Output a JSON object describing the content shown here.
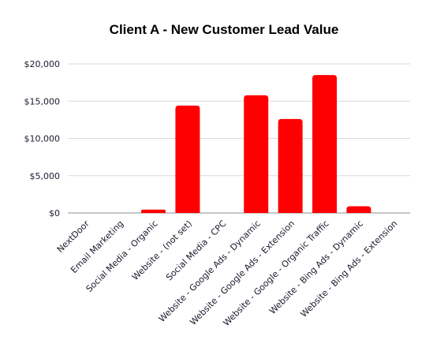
{
  "chart_data": {
    "type": "bar",
    "title": "Client A - New Customer Lead Value",
    "xlabel": "",
    "ylabel": "",
    "categories": [
      "NextDoor",
      "Email Marketing",
      "Social Media - Organic",
      "Website - (not set)",
      "Social Media - CPC",
      "Website - Google Ads - Dynamic",
      "Website - Google Ads - Extension",
      "Website - Google - Organic Traffic",
      "Website - Bing Ads - Dynamic",
      "Website - Bing Ads - Extension"
    ],
    "values": [
      0,
      0,
      450,
      14400,
      0,
      15800,
      12600,
      18500,
      900,
      0
    ],
    "ylim": [
      0,
      20000
    ],
    "yticks": [
      0,
      5000,
      10000,
      15000,
      20000
    ],
    "ytick_labels": [
      "$0",
      "$5,000",
      "$10,000",
      "$15,000",
      "$20,000"
    ],
    "grid": "horizontal",
    "legend": "none",
    "colors": {
      "bar": "#ff0000",
      "grid": "#d9d9d9",
      "text": "#1a1a2e"
    }
  }
}
